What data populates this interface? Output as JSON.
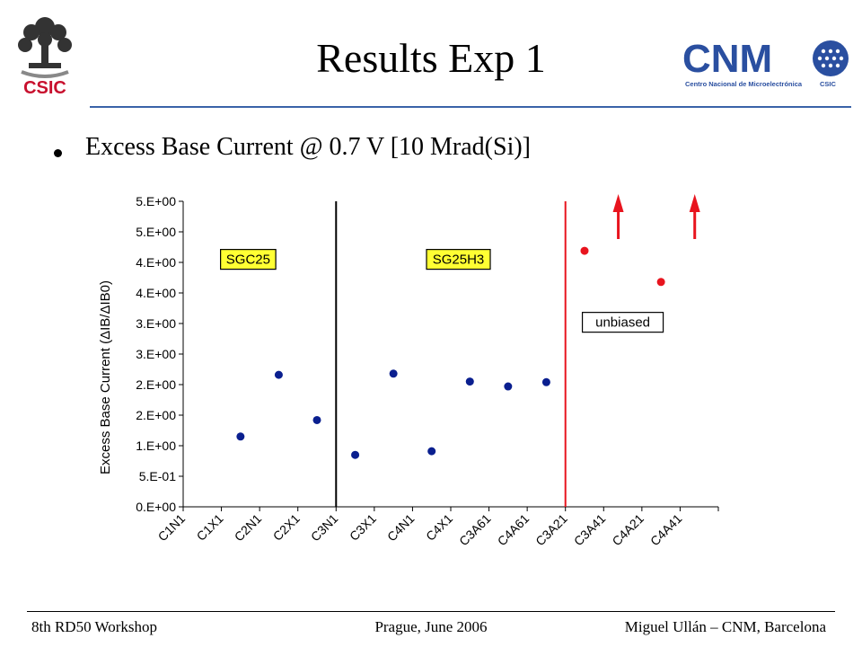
{
  "slide": {
    "title": "Results Exp 1",
    "bullet": "Excess Base Current @ 0.7 V [10 Mrad(Si)]"
  },
  "logos": {
    "left_text": "CSIC",
    "right_big": "CNM",
    "right_small": "Centro Nacional de Microelectrónica",
    "right_csic": "CSIC"
  },
  "footer": {
    "left": "8th RD50 Workshop",
    "center": "Prague, June 2006",
    "right": "Miguel Ullán – CNM, Barcelona"
  },
  "chart_data": {
    "type": "scatter",
    "categories": [
      "C1N1",
      "C1X1",
      "C2N1",
      "C2X1",
      "C3N1",
      "C3X1",
      "C4N1",
      "C4X1",
      "C3A61",
      "C4A61",
      "C3A21",
      "C3A41",
      "C4A21",
      "C4A41"
    ],
    "y_tick_labels": [
      "0.E+00",
      "5.E-01",
      "1.E+00",
      "2.E+00",
      "2.E+00",
      "3.E+00",
      "3.E+00",
      "4.E+00",
      "4.E+00",
      "5.E+00",
      "5.E+00"
    ],
    "ylim": [
      0,
      5
    ],
    "ylabel": "Excess Base Current (ΔIB/ΔIB0)",
    "grid": false,
    "series": [
      {
        "color": "#0a1f8f",
        "points": [
          {
            "x": 1.5,
            "y": 1.15
          },
          {
            "x": 2.5,
            "y": 2.16
          },
          {
            "x": 3.5,
            "y": 1.42
          },
          {
            "x": 4.5,
            "y": 0.85
          },
          {
            "x": 5.5,
            "y": 2.18
          },
          {
            "x": 6.5,
            "y": 0.91
          },
          {
            "x": 7.5,
            "y": 2.05
          },
          {
            "x": 8.5,
            "y": 1.97
          },
          {
            "x": 9.5,
            "y": 2.04
          }
        ]
      },
      {
        "color": "#e8141e",
        "points": [
          {
            "x": 10.5,
            "y": 4.19
          },
          {
            "x": 12.5,
            "y": 3.68
          }
        ]
      }
    ],
    "vertical_lines": [
      {
        "x": 4,
        "color": "#000000"
      },
      {
        "x": 10,
        "color": "#e8141e"
      }
    ],
    "arrows": [
      {
        "x": 11.5,
        "color": "#e8141e"
      },
      {
        "x": 13.5,
        "color": "#e8141e"
      }
    ],
    "annotations": [
      {
        "text": "SGC25",
        "x": 1.7,
        "y": 4.05,
        "bg": "#ffff33"
      },
      {
        "text": "SG25H3",
        "x": 7.2,
        "y": 4.05,
        "bg": "#ffff33"
      },
      {
        "text": "unbiased",
        "x": 11.5,
        "y": 3.02,
        "bg": "#ffffff"
      }
    ]
  }
}
